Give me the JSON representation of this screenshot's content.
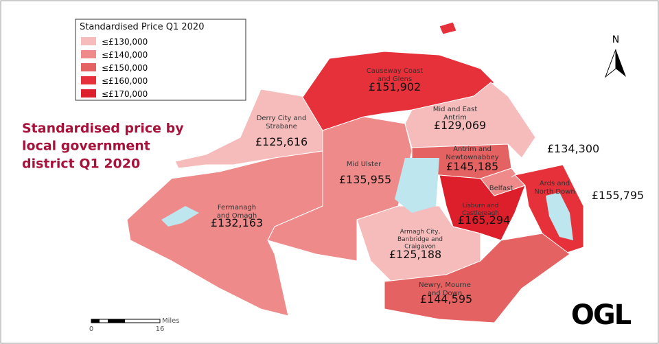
{
  "title": "Standardised price by local government district Q1 2020",
  "legend": {
    "title": "Standardised Price Q1 2020",
    "items": [
      {
        "label": "≤£130,000",
        "color": "#f6bcbc"
      },
      {
        "label": "≤£140,000",
        "color": "#ef8a8a"
      },
      {
        "label": "≤£150,000",
        "color": "#e56262"
      },
      {
        "label": "≤£160,000",
        "color": "#e6313a"
      },
      {
        "label": "≤£170,000",
        "color": "#dc1f2a"
      }
    ]
  },
  "districts": [
    {
      "name": "Causeway Coast and Glens",
      "price": "£151,902",
      "color": "#e6313a"
    },
    {
      "name": "Derry City and Strabane",
      "price": "£125,616",
      "color": "#f6bcbc"
    },
    {
      "name": "Mid and East Antrim",
      "price": "£129,069",
      "color": "#f6bcbc"
    },
    {
      "name": "Antrim and Newtownabbey",
      "price": "£145,185",
      "color": "#e56262"
    },
    {
      "name": "Mid Ulster",
      "price": "£135,955",
      "color": "#ef8a8a"
    },
    {
      "name": "Belfast",
      "price": "£134,300",
      "color": "#ef8a8a"
    },
    {
      "name": "Ards and North Down",
      "price": "£155,795",
      "color": "#e6313a"
    },
    {
      "name": "Fermanagh and Omagh",
      "price": "£132,163",
      "color": "#ef8a8a"
    },
    {
      "name": "Lisburn and Castlereagh",
      "price": "£165,294",
      "color": "#dc1f2a"
    },
    {
      "name": "Armagh City, Banbridge and Craigavon",
      "price": "£125,188",
      "color": "#f6bcbc"
    },
    {
      "name": "Newry, Mourne and Down",
      "price": "£144,595",
      "color": "#e56262"
    }
  ],
  "north": "N",
  "scale": {
    "unit": "Miles",
    "start": "0",
    "end": "16"
  },
  "logo": "OGL"
}
